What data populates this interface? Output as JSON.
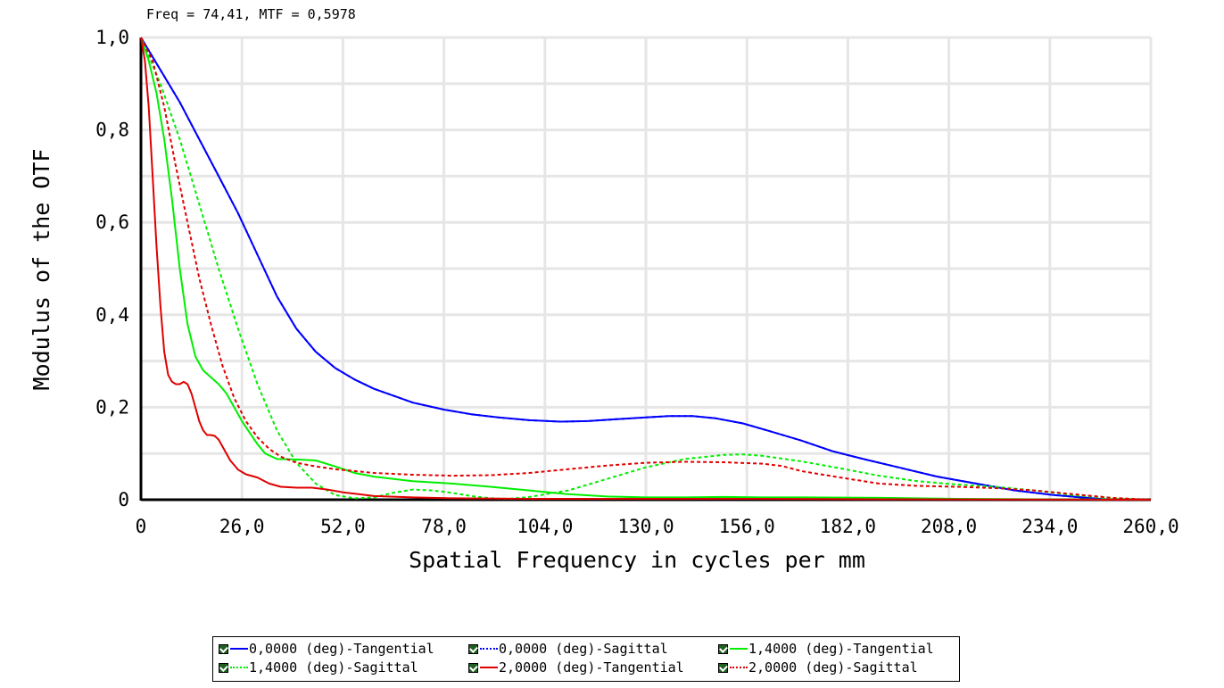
{
  "readout": "Freq = 74,41, MTF = 0,5978",
  "colors": {
    "blue": "#0000ff",
    "green": "#00ee00",
    "red": "#e00000",
    "grid": "#e6e6e6"
  },
  "chart_data": {
    "type": "line",
    "xlabel": "Spatial Frequency in cycles per mm",
    "ylabel": "Modulus of the OTF",
    "xlim": [
      0,
      260
    ],
    "ylim": [
      0,
      1
    ],
    "xticks": [
      "0",
      "26,0",
      "52,0",
      "78,0",
      "104,0",
      "130,0",
      "156,0",
      "182,0",
      "208,0",
      "234,0",
      "260,0"
    ],
    "yticks": [
      "0",
      "0,2",
      "0,4",
      "0,6",
      "0,8",
      "1,0"
    ],
    "grid": true,
    "legend_position": "bottom",
    "series": [
      {
        "name": "0,0000 (deg)-Tangential",
        "color": "#0000ff",
        "dash": "solid",
        "points": [
          [
            0,
            1.0
          ],
          [
            5,
            0.93
          ],
          [
            10,
            0.86
          ],
          [
            15,
            0.78
          ],
          [
            20,
            0.7
          ],
          [
            25,
            0.62
          ],
          [
            30,
            0.53
          ],
          [
            35,
            0.44
          ],
          [
            40,
            0.37
          ],
          [
            45,
            0.32
          ],
          [
            50,
            0.285
          ],
          [
            55,
            0.26
          ],
          [
            60,
            0.24
          ],
          [
            65,
            0.225
          ],
          [
            70,
            0.21
          ],
          [
            78,
            0.195
          ],
          [
            85,
            0.185
          ],
          [
            92,
            0.178
          ],
          [
            100,
            0.172
          ],
          [
            108,
            0.169
          ],
          [
            115,
            0.17
          ],
          [
            122,
            0.174
          ],
          [
            130,
            0.178
          ],
          [
            136,
            0.181
          ],
          [
            142,
            0.181
          ],
          [
            148,
            0.176
          ],
          [
            155,
            0.165
          ],
          [
            162,
            0.148
          ],
          [
            170,
            0.128
          ],
          [
            178,
            0.105
          ],
          [
            186,
            0.088
          ],
          [
            195,
            0.07
          ],
          [
            205,
            0.05
          ],
          [
            215,
            0.035
          ],
          [
            225,
            0.02
          ],
          [
            235,
            0.01
          ],
          [
            245,
            0.003
          ],
          [
            250,
            0.0
          ],
          [
            260,
            0.0
          ]
        ]
      },
      {
        "name": "0,0000 (deg)-Sagittal",
        "color": "#0000ff",
        "dash": "dotted",
        "points": [
          [
            0,
            1.0
          ],
          [
            5,
            0.93
          ],
          [
            10,
            0.86
          ],
          [
            15,
            0.78
          ],
          [
            20,
            0.7
          ],
          [
            25,
            0.62
          ],
          [
            30,
            0.53
          ],
          [
            35,
            0.44
          ],
          [
            40,
            0.37
          ],
          [
            45,
            0.32
          ],
          [
            50,
            0.285
          ],
          [
            55,
            0.26
          ],
          [
            60,
            0.24
          ],
          [
            65,
            0.225
          ],
          [
            70,
            0.21
          ],
          [
            78,
            0.195
          ],
          [
            85,
            0.185
          ],
          [
            92,
            0.178
          ],
          [
            100,
            0.172
          ],
          [
            108,
            0.169
          ],
          [
            115,
            0.17
          ],
          [
            122,
            0.174
          ],
          [
            130,
            0.178
          ],
          [
            136,
            0.181
          ],
          [
            142,
            0.181
          ],
          [
            148,
            0.176
          ],
          [
            155,
            0.165
          ],
          [
            162,
            0.148
          ],
          [
            170,
            0.128
          ],
          [
            178,
            0.105
          ],
          [
            186,
            0.088
          ],
          [
            195,
            0.07
          ],
          [
            205,
            0.05
          ],
          [
            215,
            0.035
          ],
          [
            225,
            0.02
          ],
          [
            235,
            0.01
          ],
          [
            245,
            0.003
          ],
          [
            250,
            0.0
          ],
          [
            260,
            0.0
          ]
        ]
      },
      {
        "name": "1,4000 (deg)-Tangential",
        "color": "#00ee00",
        "dash": "solid",
        "points": [
          [
            0,
            1.0
          ],
          [
            2,
            0.95
          ],
          [
            4,
            0.88
          ],
          [
            6,
            0.78
          ],
          [
            8,
            0.65
          ],
          [
            10,
            0.5
          ],
          [
            12,
            0.38
          ],
          [
            14,
            0.31
          ],
          [
            16,
            0.28
          ],
          [
            18,
            0.265
          ],
          [
            20,
            0.25
          ],
          [
            22,
            0.23
          ],
          [
            24,
            0.2
          ],
          [
            26,
            0.17
          ],
          [
            28,
            0.145
          ],
          [
            30,
            0.12
          ],
          [
            32,
            0.1
          ],
          [
            35,
            0.088
          ],
          [
            40,
            0.087
          ],
          [
            45,
            0.085
          ],
          [
            50,
            0.072
          ],
          [
            55,
            0.058
          ],
          [
            60,
            0.05
          ],
          [
            70,
            0.04
          ],
          [
            80,
            0.035
          ],
          [
            90,
            0.028
          ],
          [
            100,
            0.02
          ],
          [
            110,
            0.012
          ],
          [
            120,
            0.007
          ],
          [
            130,
            0.005
          ],
          [
            140,
            0.005
          ],
          [
            150,
            0.006
          ],
          [
            160,
            0.005
          ],
          [
            170,
            0.005
          ],
          [
            190,
            0.004
          ],
          [
            210,
            0.002
          ],
          [
            230,
            0.001
          ],
          [
            260,
            0.0
          ]
        ]
      },
      {
        "name": "1,4000 (deg)-Sagittal",
        "color": "#00ee00",
        "dash": "dotted",
        "points": [
          [
            0,
            1.0
          ],
          [
            5,
            0.9
          ],
          [
            10,
            0.78
          ],
          [
            15,
            0.64
          ],
          [
            20,
            0.5
          ],
          [
            25,
            0.37
          ],
          [
            30,
            0.25
          ],
          [
            35,
            0.15
          ],
          [
            40,
            0.08
          ],
          [
            45,
            0.035
          ],
          [
            50,
            0.01
          ],
          [
            55,
            0.003
          ],
          [
            60,
            0.005
          ],
          [
            65,
            0.015
          ],
          [
            70,
            0.022
          ],
          [
            75,
            0.02
          ],
          [
            80,
            0.015
          ],
          [
            85,
            0.008
          ],
          [
            90,
            0.003
          ],
          [
            95,
            0.002
          ],
          [
            100,
            0.006
          ],
          [
            110,
            0.02
          ],
          [
            120,
            0.045
          ],
          [
            130,
            0.07
          ],
          [
            140,
            0.088
          ],
          [
            150,
            0.097
          ],
          [
            155,
            0.098
          ],
          [
            160,
            0.095
          ],
          [
            170,
            0.083
          ],
          [
            180,
            0.068
          ],
          [
            190,
            0.052
          ],
          [
            200,
            0.04
          ],
          [
            210,
            0.033
          ],
          [
            220,
            0.028
          ],
          [
            230,
            0.02
          ],
          [
            240,
            0.01
          ],
          [
            250,
            0.003
          ],
          [
            260,
            0.0
          ]
        ]
      },
      {
        "name": "2,0000 (deg)-Tangential",
        "color": "#e00000",
        "dash": "solid",
        "points": [
          [
            0,
            1.0
          ],
          [
            1,
            0.95
          ],
          [
            2,
            0.85
          ],
          [
            3,
            0.7
          ],
          [
            4,
            0.55
          ],
          [
            5,
            0.42
          ],
          [
            6,
            0.32
          ],
          [
            7,
            0.27
          ],
          [
            8,
            0.255
          ],
          [
            9,
            0.25
          ],
          [
            10,
            0.25
          ],
          [
            11,
            0.255
          ],
          [
            12,
            0.25
          ],
          [
            13,
            0.23
          ],
          [
            14,
            0.2
          ],
          [
            15,
            0.17
          ],
          [
            16,
            0.15
          ],
          [
            17,
            0.14
          ],
          [
            18,
            0.14
          ],
          [
            19,
            0.138
          ],
          [
            20,
            0.13
          ],
          [
            21,
            0.115
          ],
          [
            22,
            0.1
          ],
          [
            23,
            0.085
          ],
          [
            24,
            0.075
          ],
          [
            25,
            0.065
          ],
          [
            27,
            0.055
          ],
          [
            30,
            0.048
          ],
          [
            33,
            0.035
          ],
          [
            36,
            0.028
          ],
          [
            40,
            0.026
          ],
          [
            44,
            0.026
          ],
          [
            48,
            0.022
          ],
          [
            52,
            0.016
          ],
          [
            56,
            0.012
          ],
          [
            60,
            0.008
          ],
          [
            70,
            0.005
          ],
          [
            80,
            0.003
          ],
          [
            100,
            0.002
          ],
          [
            130,
            0.002
          ],
          [
            160,
            0.002
          ],
          [
            190,
            0.001
          ],
          [
            260,
            0.0
          ]
        ]
      },
      {
        "name": "2,0000 (deg)-Sagittal",
        "color": "#e00000",
        "dash": "dotted",
        "points": [
          [
            0,
            1.0
          ],
          [
            3,
            0.95
          ],
          [
            6,
            0.85
          ],
          [
            9,
            0.72
          ],
          [
            12,
            0.6
          ],
          [
            15,
            0.48
          ],
          [
            18,
            0.38
          ],
          [
            21,
            0.29
          ],
          [
            24,
            0.22
          ],
          [
            27,
            0.17
          ],
          [
            30,
            0.135
          ],
          [
            33,
            0.11
          ],
          [
            36,
            0.093
          ],
          [
            40,
            0.08
          ],
          [
            45,
            0.072
          ],
          [
            50,
            0.066
          ],
          [
            55,
            0.062
          ],
          [
            60,
            0.058
          ],
          [
            70,
            0.054
          ],
          [
            80,
            0.052
          ],
          [
            90,
            0.053
          ],
          [
            100,
            0.058
          ],
          [
            110,
            0.066
          ],
          [
            120,
            0.074
          ],
          [
            130,
            0.08
          ],
          [
            140,
            0.082
          ],
          [
            150,
            0.081
          ],
          [
            160,
            0.078
          ],
          [
            165,
            0.073
          ],
          [
            170,
            0.062
          ],
          [
            180,
            0.048
          ],
          [
            190,
            0.035
          ],
          [
            200,
            0.03
          ],
          [
            210,
            0.028
          ],
          [
            220,
            0.025
          ],
          [
            230,
            0.02
          ],
          [
            240,
            0.012
          ],
          [
            250,
            0.004
          ],
          [
            260,
            0.0
          ]
        ]
      }
    ]
  }
}
